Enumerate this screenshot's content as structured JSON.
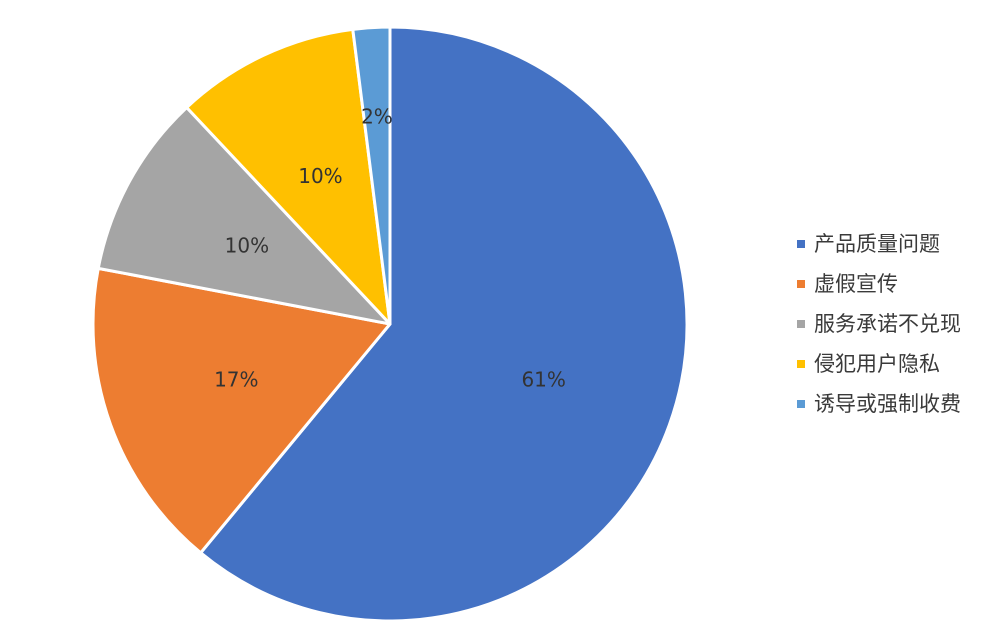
{
  "chart_data": {
    "type": "pie",
    "categories": [
      "产品质量问题",
      "虚假宣传",
      "服务承诺不兑现",
      "侵犯用户隐私",
      "诱导或强制收费"
    ],
    "values": [
      61,
      17,
      10,
      10,
      2
    ],
    "data_labels": [
      "61%",
      "17%",
      "10%",
      "10%",
      "2%"
    ],
    "colors": [
      "#4472C4",
      "#ED7D31",
      "#A5A5A5",
      "#FFC000",
      "#5B9BD5"
    ],
    "start_angle": "12 o'clock",
    "direction": "clockwise",
    "legend_position": "right"
  }
}
